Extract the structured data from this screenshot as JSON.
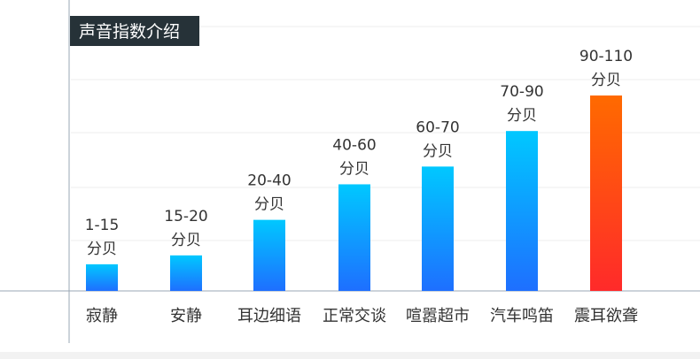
{
  "chart_data": {
    "type": "bar",
    "title": "声音指数介绍",
    "xlabel": "",
    "ylabel": "",
    "categories": [
      "寂静",
      "安静",
      "耳边细语",
      "正常交谈",
      "喧嚣超市",
      "汽车鸣笛",
      "震耳欲聋"
    ],
    "values": [
      15,
      20,
      40,
      60,
      70,
      90,
      110
    ],
    "labels": [
      [
        "1-15",
        "分贝"
      ],
      [
        "15-20",
        "分贝"
      ],
      [
        "20-40",
        "分贝"
      ],
      [
        "40-60",
        "分贝"
      ],
      [
        "60-70",
        "分贝"
      ],
      [
        "70-90",
        "分贝"
      ],
      [
        "90-110",
        "分贝"
      ]
    ],
    "ylim": [
      0,
      110
    ],
    "grid": true,
    "colors": {
      "bar_top": "#00c8ff",
      "bar_bottom": "#1e6fff",
      "highlight_top": "#ff6a00",
      "highlight_bottom": "#ff2a2a"
    },
    "highlight_index": 6
  }
}
